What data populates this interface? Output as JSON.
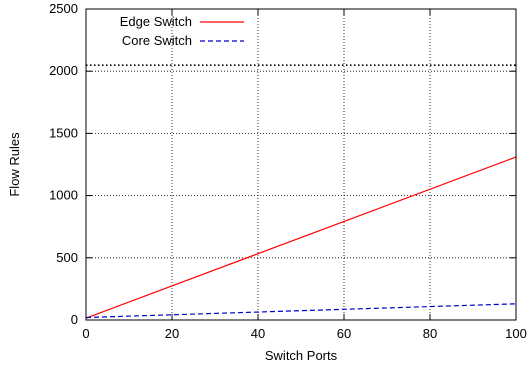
{
  "chart_data": {
    "type": "line",
    "xlabel": "Switch Ports",
    "ylabel": "Flow Rules",
    "xlim": [
      0,
      100
    ],
    "ylim": [
      0,
      2500
    ],
    "xticks": [
      0,
      20,
      40,
      60,
      80,
      100
    ],
    "yticks": [
      0,
      500,
      1000,
      1500,
      2000,
      2500
    ],
    "grid": true,
    "legend_position": "top-left",
    "reference_line": {
      "y": 2048,
      "style": "dotted",
      "color": "#000000"
    },
    "series": [
      {
        "name": "Edge Switch",
        "color": "#ff0000",
        "dash": "solid",
        "x": [
          0,
          100
        ],
        "y": [
          15,
          1310
        ]
      },
      {
        "name": "Core Switch",
        "color": "#0000cc",
        "dash": "dashed",
        "x": [
          0,
          100
        ],
        "y": [
          20,
          130
        ]
      }
    ]
  }
}
